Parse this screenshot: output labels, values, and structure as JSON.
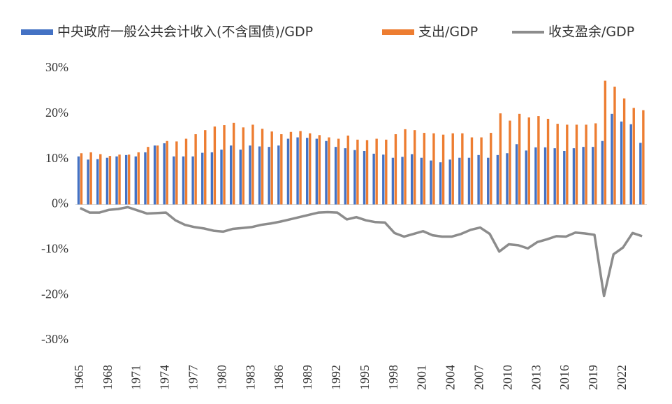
{
  "chart_data": {
    "type": "bar-line",
    "categories": [
      "1965",
      null,
      null,
      "1968",
      null,
      null,
      "1971",
      null,
      null,
      "1974",
      null,
      null,
      "1977",
      null,
      null,
      "1980",
      null,
      null,
      "1983",
      null,
      null,
      "1986",
      null,
      null,
      "1989",
      null,
      null,
      "1992",
      null,
      null,
      "1995",
      null,
      null,
      "1998",
      null,
      null,
      "2001",
      null,
      null,
      "2004",
      null,
      null,
      "2007",
      null,
      null,
      "2010",
      null,
      null,
      "2013",
      null,
      null,
      "2016",
      null,
      null,
      "2019",
      null,
      null,
      "2022",
      null,
      null
    ],
    "series": [
      {
        "name": "中央政府一般公共会计收入(不含国债)/GDP",
        "kind": "bar",
        "color": "#4472c4",
        "values": [
          10.6,
          9.9,
          10.0,
          10.3,
          10.6,
          10.9,
          10.6,
          11.5,
          13.0,
          13.5,
          10.6,
          10.6,
          10.6,
          11.4,
          11.5,
          12.1,
          13.0,
          12.1,
          13.0,
          12.8,
          12.7,
          13.0,
          14.5,
          14.8,
          14.7,
          14.5,
          14.0,
          12.7,
          12.4,
          12.0,
          11.8,
          11.2,
          11.0,
          10.3,
          10.5,
          11.1,
          10.3,
          9.7,
          9.3,
          9.9,
          10.3,
          10.3,
          10.9,
          10.3,
          10.9,
          11.3,
          13.3,
          11.9,
          12.6,
          12.6,
          12.4,
          11.8,
          12.4,
          12.7,
          12.7,
          14.0,
          20.0,
          18.3,
          17.7,
          13.6
        ]
      },
      {
        "name": "支出/GDP",
        "kind": "bar",
        "color": "#ed7d31",
        "values": [
          11.3,
          11.5,
          11.1,
          10.7,
          11.0,
          11.0,
          11.5,
          12.7,
          13.0,
          14.0,
          13.9,
          14.5,
          15.5,
          16.4,
          17.2,
          17.5,
          18.0,
          17.0,
          17.6,
          16.7,
          16.1,
          15.5,
          16.0,
          16.2,
          15.7,
          15.3,
          14.8,
          14.5,
          15.2,
          14.3,
          14.2,
          14.5,
          14.3,
          15.5,
          16.6,
          16.4,
          15.8,
          15.7,
          15.4,
          15.7,
          15.7,
          14.8,
          14.8,
          15.8,
          20.1,
          18.5,
          20.0,
          19.2,
          19.5,
          18.9,
          17.8,
          17.6,
          17.6,
          17.6,
          17.9,
          27.3,
          26.0,
          23.4,
          21.3,
          20.8
        ]
      },
      {
        "name": "收支盈余/GDP",
        "kind": "line",
        "color": "#8c8c8c",
        "values": [
          -0.8,
          -1.8,
          -1.8,
          -1.2,
          -1.0,
          -0.6,
          -1.3,
          -2.0,
          -1.9,
          -1.8,
          -3.5,
          -4.5,
          -5.0,
          -5.3,
          -5.8,
          -6.0,
          -5.4,
          -5.2,
          -5.0,
          -4.5,
          -4.2,
          -3.8,
          -3.3,
          -2.8,
          -2.3,
          -1.8,
          -1.7,
          -1.8,
          -3.3,
          -2.8,
          -3.5,
          -3.9,
          -4.0,
          -6.3,
          -7.1,
          -6.5,
          -5.9,
          -6.8,
          -7.1,
          -7.1,
          -6.5,
          -5.6,
          -5.1,
          -6.5,
          -10.4,
          -8.8,
          -9.0,
          -9.7,
          -8.3,
          -7.7,
          -7.0,
          -7.1,
          -6.2,
          -6.4,
          -6.7,
          -20.2,
          -11.0,
          -9.5,
          -6.3,
          -7.0
        ]
      }
    ],
    "ylim": [
      -30,
      30
    ],
    "yticks": [
      {
        "value": -30,
        "label": "-30%"
      },
      {
        "value": -20,
        "label": "-20%"
      },
      {
        "value": -10,
        "label": "-10%"
      },
      {
        "value": 0,
        "label": "0%"
      },
      {
        "value": 10,
        "label": "10%"
      },
      {
        "value": 20,
        "label": "20%"
      },
      {
        "value": 30,
        "label": "30%"
      }
    ]
  }
}
